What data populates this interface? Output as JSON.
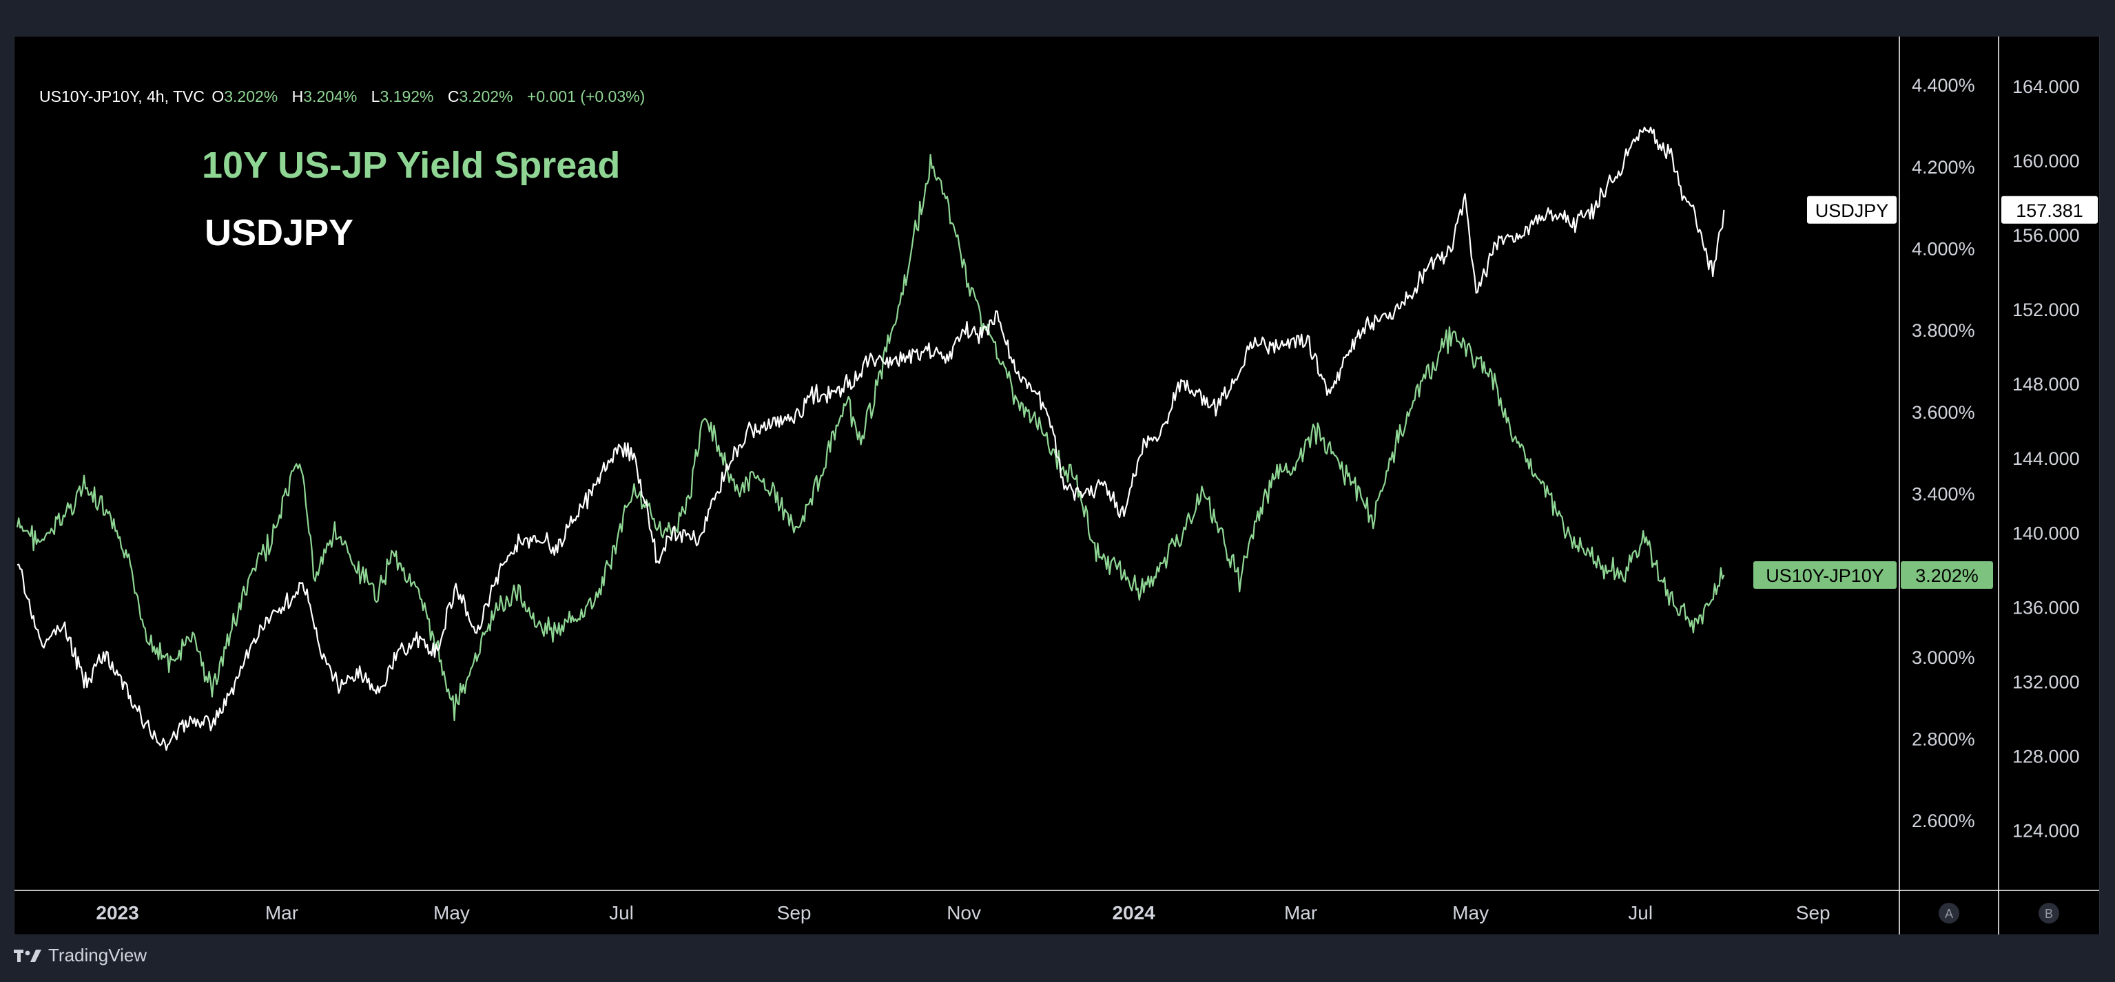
{
  "legend": {
    "symbol": "US10Y-JP10Y, 4h, TVC",
    "open_label": "O",
    "open": "3.202%",
    "high_label": "H",
    "high": "3.204%",
    "low_label": "L",
    "low": "3.192%",
    "close_label": "C",
    "close": "3.202%",
    "change": "+0.001 (+0.03%)"
  },
  "overlay": {
    "title": "10Y US-JP Yield Spread",
    "subtitle": "USDJPY"
  },
  "footer": {
    "brand": "TradingView"
  },
  "colors": {
    "spread": "#8fd694",
    "usdjpy": "#ffffff",
    "spread_badge_bg": "#7ec27f",
    "background": "#000000",
    "frame": "#1e222d"
  },
  "chart_data": {
    "type": "line",
    "x_ticks": [
      {
        "label": "2023",
        "date": "2023-01-01",
        "bold": true
      },
      {
        "label": "Mar",
        "date": "2023-03-01"
      },
      {
        "label": "May",
        "date": "2023-05-01"
      },
      {
        "label": "Jul",
        "date": "2023-07-01"
      },
      {
        "label": "Sep",
        "date": "2023-09-01"
      },
      {
        "label": "Nov",
        "date": "2023-11-01"
      },
      {
        "label": "2024",
        "date": "2024-01-01",
        "bold": true
      },
      {
        "label": "Mar",
        "date": "2024-03-01"
      },
      {
        "label": "May",
        "date": "2024-05-01"
      },
      {
        "label": "Jul",
        "date": "2024-07-01"
      },
      {
        "label": "Sep",
        "date": "2024-09-01"
      }
    ],
    "xlim": [
      "2022-11-25",
      "2024-10-02"
    ],
    "left_axis": {
      "series": "US10Y-JP10Y",
      "ylim": [
        2.43,
        4.52
      ],
      "ticks": [
        "2.600%",
        "2.800%",
        "3.000%",
        "3.200%",
        "3.400%",
        "3.600%",
        "3.800%",
        "4.000%",
        "4.200%",
        "4.400%"
      ],
      "tick_values": [
        2.6,
        2.8,
        3.0,
        3.2,
        3.4,
        3.6,
        3.8,
        4.0,
        4.2,
        4.4
      ],
      "hidden_ticks": [
        "3.200%"
      ],
      "badge_label": "US10Y-JP10Y",
      "badge_value": "3.202%",
      "badge_at": 3.202
    },
    "right_axis": {
      "series": "USDJPY",
      "ylim": [
        120.8,
        166.7
      ],
      "ticks": [
        "124.000",
        "128.000",
        "132.000",
        "136.000",
        "140.000",
        "144.000",
        "148.000",
        "152.000",
        "156.000",
        "160.000",
        "164.000"
      ],
      "tick_values": [
        124,
        128,
        132,
        136,
        140,
        144,
        148,
        152,
        156,
        160,
        164
      ],
      "badge_label": "USDJPY",
      "badge_value": "157.381",
      "badge_at": 157.381
    },
    "bottom_buttons": [
      "A",
      "B"
    ],
    "series": [
      {
        "name": "US10Y-JP10Y",
        "axis": "left",
        "color": "#8fd694",
        "points": [
          [
            "2022-11-26",
            3.32
          ],
          [
            "2022-12-05",
            3.28
          ],
          [
            "2022-12-12",
            3.34
          ],
          [
            "2022-12-20",
            3.42
          ],
          [
            "2022-12-28",
            3.35
          ],
          [
            "2023-01-04",
            3.25
          ],
          [
            "2023-01-12",
            3.05
          ],
          [
            "2023-01-20",
            2.98
          ],
          [
            "2023-01-28",
            3.05
          ],
          [
            "2023-02-04",
            2.92
          ],
          [
            "2023-02-10",
            3.05
          ],
          [
            "2023-02-18",
            3.2
          ],
          [
            "2023-02-26",
            3.3
          ],
          [
            "2023-03-04",
            3.42
          ],
          [
            "2023-03-08",
            3.48
          ],
          [
            "2023-03-13",
            3.18
          ],
          [
            "2023-03-20",
            3.32
          ],
          [
            "2023-03-27",
            3.22
          ],
          [
            "2023-04-04",
            3.15
          ],
          [
            "2023-04-10",
            3.26
          ],
          [
            "2023-04-17",
            3.18
          ],
          [
            "2023-04-24",
            3.06
          ],
          [
            "2023-05-02",
            2.88
          ],
          [
            "2023-05-09",
            2.98
          ],
          [
            "2023-05-17",
            3.12
          ],
          [
            "2023-05-25",
            3.16
          ],
          [
            "2023-06-01",
            3.08
          ],
          [
            "2023-06-08",
            3.06
          ],
          [
            "2023-06-15",
            3.1
          ],
          [
            "2023-06-22",
            3.14
          ],
          [
            "2023-06-30",
            3.3
          ],
          [
            "2023-07-05",
            3.42
          ],
          [
            "2023-07-10",
            3.36
          ],
          [
            "2023-07-18",
            3.3
          ],
          [
            "2023-07-25",
            3.38
          ],
          [
            "2023-07-31",
            3.6
          ],
          [
            "2023-08-06",
            3.5
          ],
          [
            "2023-08-12",
            3.4
          ],
          [
            "2023-08-20",
            3.45
          ],
          [
            "2023-08-26",
            3.38
          ],
          [
            "2023-09-02",
            3.32
          ],
          [
            "2023-09-08",
            3.4
          ],
          [
            "2023-09-14",
            3.52
          ],
          [
            "2023-09-20",
            3.62
          ],
          [
            "2023-09-25",
            3.52
          ],
          [
            "2023-10-02",
            3.7
          ],
          [
            "2023-10-09",
            3.86
          ],
          [
            "2023-10-14",
            4.02
          ],
          [
            "2023-10-20",
            4.2
          ],
          [
            "2023-10-26",
            4.12
          ],
          [
            "2023-11-01",
            3.95
          ],
          [
            "2023-11-08",
            3.82
          ],
          [
            "2023-11-15",
            3.72
          ],
          [
            "2023-11-20",
            3.62
          ],
          [
            "2023-11-27",
            3.58
          ],
          [
            "2023-12-04",
            3.48
          ],
          [
            "2023-12-11",
            3.45
          ],
          [
            "2023-12-18",
            3.26
          ],
          [
            "2023-12-26",
            3.22
          ],
          [
            "2024-01-03",
            3.16
          ],
          [
            "2024-01-10",
            3.22
          ],
          [
            "2024-01-18",
            3.3
          ],
          [
            "2024-01-26",
            3.4
          ],
          [
            "2024-02-02",
            3.3
          ],
          [
            "2024-02-08",
            3.18
          ],
          [
            "2024-02-14",
            3.34
          ],
          [
            "2024-02-22",
            3.45
          ],
          [
            "2024-02-29",
            3.48
          ],
          [
            "2024-03-06",
            3.55
          ],
          [
            "2024-03-12",
            3.5
          ],
          [
            "2024-03-20",
            3.42
          ],
          [
            "2024-03-27",
            3.34
          ],
          [
            "2024-04-04",
            3.52
          ],
          [
            "2024-04-12",
            3.66
          ],
          [
            "2024-04-18",
            3.72
          ],
          [
            "2024-04-25",
            3.8
          ],
          [
            "2024-05-01",
            3.74
          ],
          [
            "2024-05-08",
            3.7
          ],
          [
            "2024-05-15",
            3.56
          ],
          [
            "2024-05-22",
            3.48
          ],
          [
            "2024-05-29",
            3.4
          ],
          [
            "2024-06-05",
            3.3
          ],
          [
            "2024-06-12",
            3.25
          ],
          [
            "2024-06-19",
            3.22
          ],
          [
            "2024-06-26",
            3.2
          ],
          [
            "2024-07-02",
            3.3
          ],
          [
            "2024-07-08",
            3.2
          ],
          [
            "2024-07-14",
            3.12
          ],
          [
            "2024-07-20",
            3.08
          ],
          [
            "2024-07-26",
            3.14
          ],
          [
            "2024-07-31",
            3.202
          ]
        ]
      },
      {
        "name": "USDJPY",
        "axis": "right",
        "color": "#ffffff",
        "points": [
          [
            "2022-11-26",
            138.5
          ],
          [
            "2022-12-05",
            133.8
          ],
          [
            "2022-12-12",
            135.2
          ],
          [
            "2022-12-20",
            132.0
          ],
          [
            "2022-12-28",
            133.5
          ],
          [
            "2023-01-05",
            131.2
          ],
          [
            "2023-01-12",
            129.6
          ],
          [
            "2023-01-18",
            128.5
          ],
          [
            "2023-01-26",
            129.8
          ],
          [
            "2023-02-04",
            129.8
          ],
          [
            "2023-02-10",
            131.2
          ],
          [
            "2023-02-18",
            134.0
          ],
          [
            "2023-02-26",
            135.8
          ],
          [
            "2023-03-04",
            136.6
          ],
          [
            "2023-03-09",
            137.2
          ],
          [
            "2023-03-15",
            133.6
          ],
          [
            "2023-03-22",
            131.8
          ],
          [
            "2023-03-29",
            132.4
          ],
          [
            "2023-04-05",
            131.4
          ],
          [
            "2023-04-12",
            133.6
          ],
          [
            "2023-04-19",
            134.2
          ],
          [
            "2023-04-26",
            133.6
          ],
          [
            "2023-05-02",
            137.0
          ],
          [
            "2023-05-10",
            134.8
          ],
          [
            "2023-05-17",
            137.6
          ],
          [
            "2023-05-25",
            139.4
          ],
          [
            "2023-06-01",
            139.8
          ],
          [
            "2023-06-08",
            139.2
          ],
          [
            "2023-06-15",
            141.0
          ],
          [
            "2023-06-22",
            142.6
          ],
          [
            "2023-06-30",
            144.6
          ],
          [
            "2023-07-05",
            144.2
          ],
          [
            "2023-07-10",
            141.5
          ],
          [
            "2023-07-14",
            138.4
          ],
          [
            "2023-07-20",
            140.2
          ],
          [
            "2023-07-28",
            139.6
          ],
          [
            "2023-08-04",
            142.0
          ],
          [
            "2023-08-10",
            144.2
          ],
          [
            "2023-08-17",
            145.6
          ],
          [
            "2023-08-24",
            145.8
          ],
          [
            "2023-09-01",
            146.2
          ],
          [
            "2023-09-08",
            147.4
          ],
          [
            "2023-09-15",
            147.6
          ],
          [
            "2023-09-22",
            148.2
          ],
          [
            "2023-09-29",
            149.4
          ],
          [
            "2023-10-06",
            149.2
          ],
          [
            "2023-10-13",
            149.6
          ],
          [
            "2023-10-20",
            149.8
          ],
          [
            "2023-10-27",
            149.6
          ],
          [
            "2023-11-01",
            151.0
          ],
          [
            "2023-11-08",
            150.6
          ],
          [
            "2023-11-13",
            151.8
          ],
          [
            "2023-11-20",
            148.6
          ],
          [
            "2023-11-27",
            147.4
          ],
          [
            "2023-12-01",
            146.8
          ],
          [
            "2023-12-07",
            142.2
          ],
          [
            "2023-12-14",
            142.0
          ],
          [
            "2023-12-21",
            142.6
          ],
          [
            "2023-12-28",
            141.0
          ],
          [
            "2024-01-04",
            144.6
          ],
          [
            "2024-01-11",
            145.4
          ],
          [
            "2024-01-18",
            148.2
          ],
          [
            "2024-01-24",
            147.4
          ],
          [
            "2024-01-31",
            146.8
          ],
          [
            "2024-02-07",
            148.4
          ],
          [
            "2024-02-13",
            150.2
          ],
          [
            "2024-02-20",
            150.0
          ],
          [
            "2024-02-27",
            150.4
          ],
          [
            "2024-03-04",
            150.2
          ],
          [
            "2024-03-11",
            147.4
          ],
          [
            "2024-03-18",
            149.6
          ],
          [
            "2024-03-25",
            151.4
          ],
          [
            "2024-04-02",
            151.6
          ],
          [
            "2024-04-10",
            152.8
          ],
          [
            "2024-04-17",
            154.6
          ],
          [
            "2024-04-24",
            155.2
          ],
          [
            "2024-04-29",
            158.2
          ],
          [
            "2024-05-03",
            152.8
          ],
          [
            "2024-05-10",
            155.6
          ],
          [
            "2024-05-17",
            155.8
          ],
          [
            "2024-05-24",
            156.8
          ],
          [
            "2024-05-31",
            157.2
          ],
          [
            "2024-06-07",
            156.6
          ],
          [
            "2024-06-14",
            157.4
          ],
          [
            "2024-06-21",
            159.0
          ],
          [
            "2024-06-28",
            160.8
          ],
          [
            "2024-07-03",
            161.8
          ],
          [
            "2024-07-08",
            161.0
          ],
          [
            "2024-07-12",
            160.2
          ],
          [
            "2024-07-16",
            158.4
          ],
          [
            "2024-07-20",
            157.4
          ],
          [
            "2024-07-24",
            155.2
          ],
          [
            "2024-07-27",
            154.0
          ],
          [
            "2024-07-31",
            157.381
          ]
        ]
      }
    ]
  }
}
